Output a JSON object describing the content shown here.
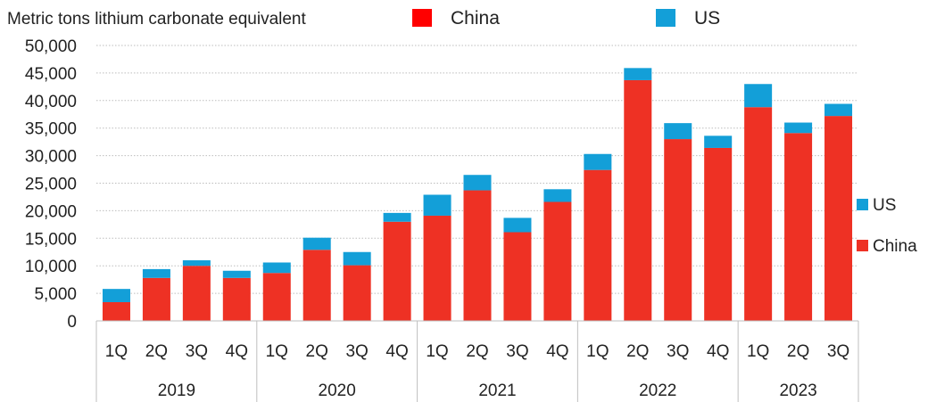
{
  "chart_data": {
    "type": "bar",
    "stacked": true,
    "ylabel": "Metric tons lithium carbonate equivalent",
    "ylim": [
      0,
      50000
    ],
    "y_ticks": [
      "0",
      "5,000",
      "10,000",
      "15,000",
      "20,000",
      "25,000",
      "30,000",
      "35,000",
      "40,000",
      "45,000",
      "50,000"
    ],
    "categories": [
      "1Q",
      "2Q",
      "3Q",
      "4Q",
      "1Q",
      "2Q",
      "3Q",
      "4Q",
      "1Q",
      "2Q",
      "3Q",
      "4Q",
      "1Q",
      "2Q",
      "3Q",
      "4Q",
      "1Q",
      "2Q",
      "3Q"
    ],
    "years": [
      {
        "label": "2019",
        "count": 4
      },
      {
        "label": "2020",
        "count": 4
      },
      {
        "label": "2021",
        "count": 4
      },
      {
        "label": "2022",
        "count": 4
      },
      {
        "label": "2023",
        "count": 3
      }
    ],
    "series": [
      {
        "name": "China",
        "color": "#ee3124",
        "values": [
          3400,
          7800,
          10000,
          7800,
          8700,
          12900,
          10100,
          18000,
          19100,
          23700,
          16100,
          21600,
          27400,
          43700,
          33000,
          31400,
          38800,
          34100,
          37200
        ]
      },
      {
        "name": "US",
        "color": "#139fd8",
        "values": [
          2400,
          1600,
          1000,
          1300,
          1900,
          2200,
          2400,
          1600,
          3800,
          2800,
          2600,
          2300,
          2900,
          2200,
          2900,
          2200,
          4200,
          1900,
          2200
        ]
      }
    ],
    "top_legend": [
      {
        "name": "China",
        "color": "#ff0000"
      },
      {
        "name": "US",
        "color": "#139fd8"
      }
    ],
    "right_legend": [
      {
        "name": "US",
        "color": "#139fd8"
      },
      {
        "name": "China",
        "color": "#ee3124"
      }
    ],
    "grid": true
  }
}
